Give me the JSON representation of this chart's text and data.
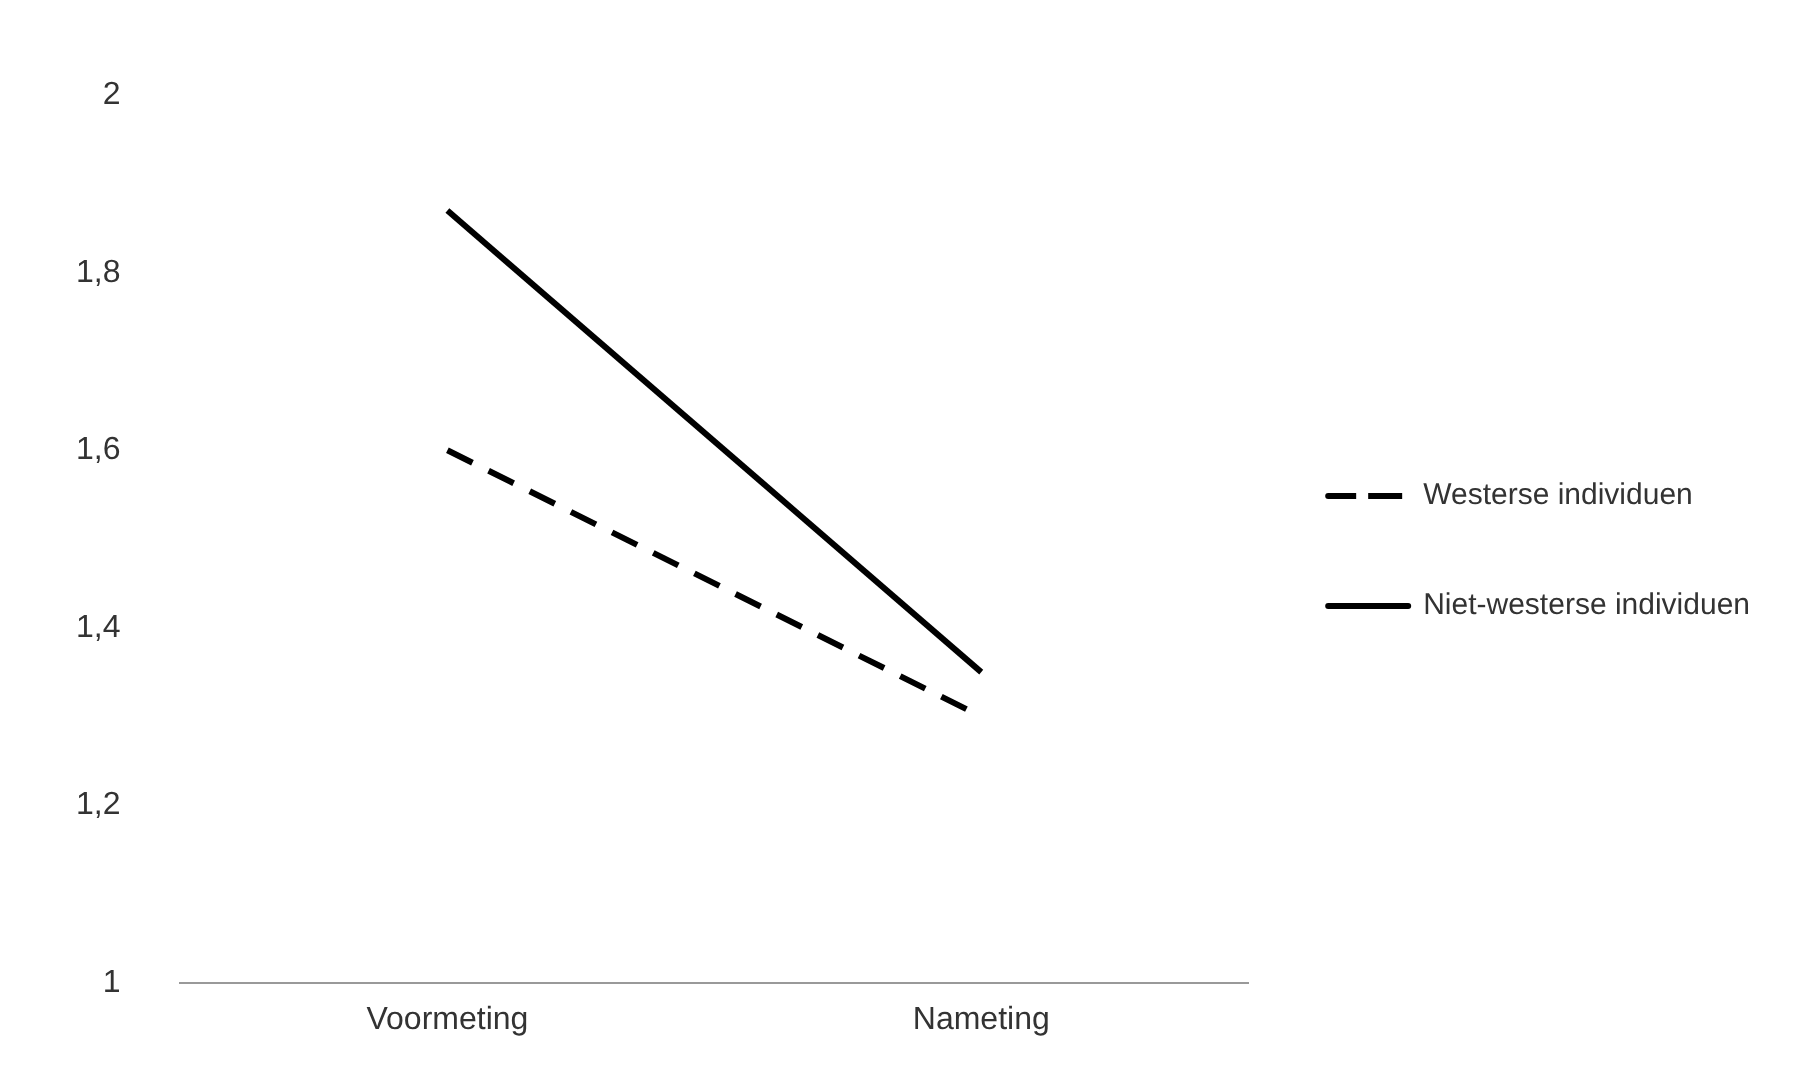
{
  "chart_data": {
    "type": "line",
    "categories": [
      "Voormeting",
      "Nameting"
    ],
    "series": [
      {
        "name": "Westerse individuen",
        "color": "#000000",
        "values": [
          1.6,
          1.3
        ],
        "line_style": "dashed"
      },
      {
        "name": "Niet-westerse individuen",
        "color": "#000000",
        "values": [
          1.87,
          1.35
        ],
        "line_style": "solid"
      }
    ],
    "ylim": [
      1,
      2
    ],
    "yticks": [
      1,
      {
        "value": 1.2,
        "label": "1,2"
      },
      {
        "value": 1.4,
        "label": "1,4"
      },
      {
        "value": 1.6,
        "label": "1,6"
      },
      {
        "value": 1.8,
        "label": "1,8"
      },
      2
    ],
    "grid": false,
    "legend": "right",
    "marker": "none"
  }
}
